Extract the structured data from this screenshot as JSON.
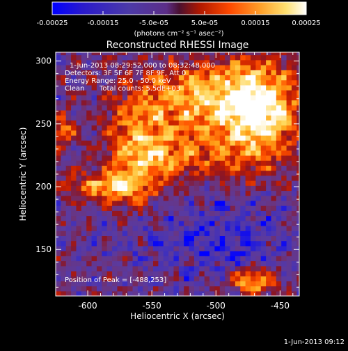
{
  "chart_data": {
    "type": "heatmap",
    "title": "Reconstructed RHESSI Image",
    "xlabel": "Heliocentric X (arcsec)",
    "ylabel": "Heliocentric Y (arcsec)",
    "xlim": [
      -625,
      -435
    ],
    "ylim": [
      113,
      307
    ],
    "x_ticks": [
      "-600",
      "-550",
      "-500",
      "-450"
    ],
    "y_ticks": [
      "150",
      "200",
      "250",
      "300"
    ],
    "colorbar": {
      "range": [
        -0.00025,
        0.00025
      ],
      "tick_labels": [
        "-0.00025",
        "-0.00015",
        "-5.0e-05",
        "5.0e-05",
        "0.00015",
        "0.00025"
      ],
      "units_label": "(photons cm⁻² s⁻¹ asec⁻²)"
    },
    "annotations": {
      "time_range": "1-Jun-2013 08:29:52.000 to 08:32:48.000",
      "detectors": "Detectors: 3F 5F 6F 7F 8F 9F, Att 0",
      "energy_range": "Energy Range: 25.0 - 50.0 keV",
      "clean_label": "Clean",
      "total_counts": "Total counts: 5.5dE+03",
      "peak_position": "Position of Peak = [-488,253]"
    },
    "peak": {
      "x": -488,
      "y": 253
    },
    "colormap_stops": [
      "#0000ff",
      "#3d2fbf",
      "#5a3aa0",
      "#6a3580",
      "#8a1525",
      "#c81f00",
      "#ff5200",
      "#ffa51a",
      "#ffd75a",
      "#ffffff"
    ]
  },
  "footer": {
    "timestamp": "1-Jun-2013 09:12"
  }
}
